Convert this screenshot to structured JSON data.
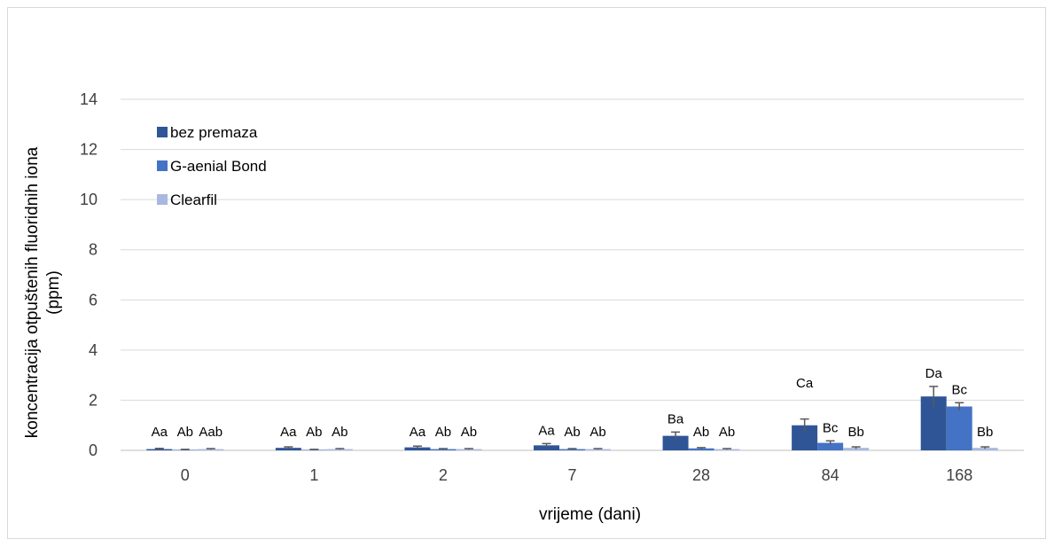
{
  "chart_data": {
    "type": "bar",
    "title": "",
    "xlabel": "vrijeme (dani)",
    "ylabel_lines": [
      "koncentracija otpuštenih fluoridnih iona",
      "(ppm)"
    ],
    "ylim": [
      0,
      14
    ],
    "yticks": [
      0,
      2,
      4,
      6,
      8,
      10,
      12,
      14
    ],
    "grid": true,
    "legend_position": "top-left",
    "categories": [
      "0",
      "1",
      "2",
      "7",
      "28",
      "84",
      "168"
    ],
    "series": [
      {
        "name": "bez premaza",
        "color": "#2f5597",
        "values": [
          0.05,
          0.1,
          0.12,
          0.2,
          0.58,
          1.0,
          2.15
        ],
        "errors": [
          0.03,
          0.04,
          0.05,
          0.07,
          0.15,
          0.25,
          0.4
        ],
        "labels": [
          "Aa",
          "Aa",
          "Aa",
          "Aa",
          "Ba",
          "Ca",
          "Da"
        ]
      },
      {
        "name": "G-aenial Bond",
        "color": "#4472c4",
        "values": [
          0.02,
          0.02,
          0.05,
          0.05,
          0.08,
          0.3,
          1.75
        ],
        "errors": [
          0.02,
          0.02,
          0.02,
          0.02,
          0.03,
          0.08,
          0.15
        ],
        "labels": [
          "Ab",
          "Ab",
          "Ab",
          "Ab",
          "Ab",
          "Bc",
          "Bc"
        ]
      },
      {
        "name": "Clearfil",
        "color": "#a9b8e0",
        "values": [
          0.05,
          0.05,
          0.05,
          0.05,
          0.05,
          0.1,
          0.1
        ],
        "errors": [
          0.02,
          0.02,
          0.02,
          0.02,
          0.02,
          0.04,
          0.04
        ],
        "labels": [
          "Aab",
          "Ab",
          "Ab",
          "Ab",
          "Ab",
          "Bb",
          "Bb"
        ]
      }
    ]
  }
}
